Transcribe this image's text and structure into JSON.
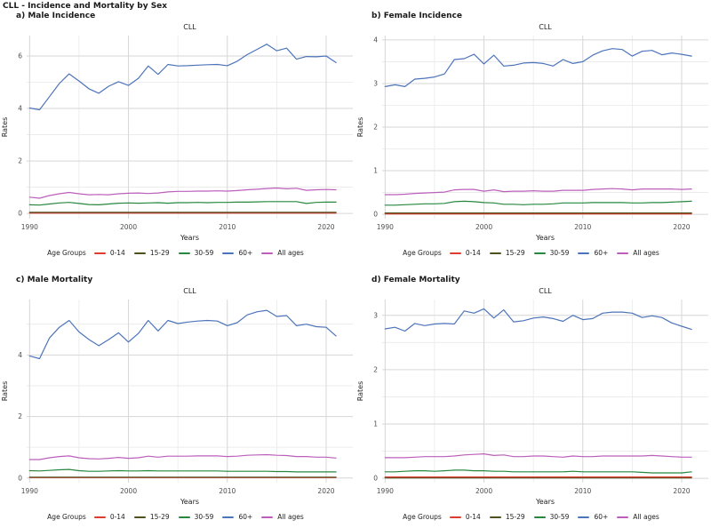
{
  "main_title": "CLL - Incidence and Mortality by Sex",
  "theme": {
    "background": "#ffffff",
    "grid_major": "#d6d6d6",
    "grid_minor": "#e9e9e9",
    "tick_color": "#4d4d4d",
    "text_color": "#1a1a1a"
  },
  "legend": {
    "title": "Age Groups",
    "items": [
      {
        "label": "0-14",
        "color": "#de3b31"
      },
      {
        "label": "15-29",
        "color": "#4f501e"
      },
      {
        "label": "30-59",
        "color": "#27873f"
      },
      {
        "label": "60+",
        "color": "#4d74ba"
      },
      {
        "label": "All ages",
        "color": "#bc5fbb"
      }
    ]
  },
  "panels": [
    {
      "label": "a) Male Incidence",
      "chart": 0
    },
    {
      "label": "b) Female Incidence",
      "chart": 1
    },
    {
      "label": "c) Male Mortality",
      "chart": 2
    },
    {
      "label": "d) Female Mortality",
      "chart": 3
    }
  ],
  "chart_data": [
    {
      "type": "line",
      "title": "CLL",
      "xlabel": "Years",
      "ylabel": "Rates",
      "x": [
        1990,
        1991,
        1992,
        1993,
        1994,
        1995,
        1996,
        1997,
        1998,
        1999,
        2000,
        2001,
        2002,
        2003,
        2004,
        2005,
        2006,
        2007,
        2008,
        2009,
        2010,
        2011,
        2012,
        2013,
        2014,
        2015,
        2016,
        2017,
        2018,
        2019,
        2020,
        2021
      ],
      "xlim": [
        1989.7,
        2022.7
      ],
      "ylim": [
        -0.2,
        6.78
      ],
      "xticks": [
        1990,
        2000,
        2010,
        2020
      ],
      "x_minor": [
        1995,
        2005,
        2015
      ],
      "yticks": [
        0,
        2,
        4,
        6
      ],
      "y_minor": [
        1,
        3,
        5
      ],
      "series": [
        {
          "name": "0-14",
          "values": [
            0.01,
            0.01,
            0.01,
            0.01,
            0.01,
            0.01,
            0.01,
            0.01,
            0.01,
            0.01,
            0.01,
            0.01,
            0.01,
            0.01,
            0.01,
            0.01,
            0.01,
            0.01,
            0.01,
            0.01,
            0.01,
            0.01,
            0.01,
            0.01,
            0.01,
            0.01,
            0.01,
            0.01,
            0.01,
            0.01,
            0.01,
            0.01
          ]
        },
        {
          "name": "15-29",
          "values": [
            0.04,
            0.04,
            0.04,
            0.04,
            0.04,
            0.04,
            0.04,
            0.04,
            0.04,
            0.04,
            0.04,
            0.04,
            0.04,
            0.04,
            0.04,
            0.04,
            0.04,
            0.04,
            0.04,
            0.04,
            0.04,
            0.04,
            0.04,
            0.04,
            0.04,
            0.04,
            0.04,
            0.04,
            0.04,
            0.04,
            0.04,
            0.04
          ]
        },
        {
          "name": "30-59",
          "values": [
            0.33,
            0.32,
            0.36,
            0.4,
            0.42,
            0.38,
            0.34,
            0.33,
            0.36,
            0.39,
            0.4,
            0.39,
            0.4,
            0.41,
            0.39,
            0.41,
            0.41,
            0.42,
            0.41,
            0.42,
            0.42,
            0.43,
            0.43,
            0.44,
            0.45,
            0.45,
            0.45,
            0.45,
            0.38,
            0.42,
            0.43,
            0.43
          ]
        },
        {
          "name": "60+",
          "values": [
            4.02,
            3.95,
            4.45,
            4.95,
            5.32,
            5.05,
            4.75,
            4.58,
            4.85,
            5.02,
            4.88,
            5.15,
            5.62,
            5.3,
            5.68,
            5.62,
            5.63,
            5.65,
            5.67,
            5.68,
            5.63,
            5.8,
            6.05,
            6.25,
            6.45,
            6.2,
            6.3,
            5.88,
            5.98,
            5.97,
            6.0,
            5.75
          ]
        },
        {
          "name": "All ages",
          "values": [
            0.62,
            0.58,
            0.68,
            0.75,
            0.8,
            0.75,
            0.71,
            0.72,
            0.71,
            0.75,
            0.77,
            0.78,
            0.76,
            0.78,
            0.82,
            0.84,
            0.84,
            0.85,
            0.85,
            0.86,
            0.85,
            0.87,
            0.9,
            0.92,
            0.95,
            0.97,
            0.94,
            0.96,
            0.88,
            0.9,
            0.91,
            0.9
          ]
        }
      ]
    },
    {
      "type": "line",
      "title": "CLL",
      "xlabel": "Years",
      "ylabel": "Rates",
      "x": [
        1990,
        1991,
        1992,
        1993,
        1994,
        1995,
        1996,
        1997,
        1998,
        1999,
        2000,
        2001,
        2002,
        2003,
        2004,
        2005,
        2006,
        2007,
        2008,
        2009,
        2010,
        2011,
        2012,
        2013,
        2014,
        2015,
        2016,
        2017,
        2018,
        2019,
        2020,
        2021
      ],
      "xlim": [
        1989.7,
        2022.7
      ],
      "ylim": [
        -0.1,
        4.1
      ],
      "xticks": [
        1990,
        2000,
        2010,
        2020
      ],
      "x_minor": [
        1995,
        2005,
        2015
      ],
      "yticks": [
        0,
        1,
        2,
        3,
        4
      ],
      "y_minor": [
        0.5,
        1.5,
        2.5,
        3.5
      ],
      "series": [
        {
          "name": "0-14",
          "values": [
            0.01,
            0.01,
            0.01,
            0.01,
            0.01,
            0.01,
            0.01,
            0.01,
            0.01,
            0.01,
            0.01,
            0.01,
            0.01,
            0.01,
            0.01,
            0.01,
            0.01,
            0.01,
            0.01,
            0.01,
            0.01,
            0.01,
            0.01,
            0.01,
            0.01,
            0.01,
            0.01,
            0.01,
            0.01,
            0.01,
            0.01,
            0.01
          ]
        },
        {
          "name": "15-29",
          "values": [
            0.03,
            0.03,
            0.03,
            0.03,
            0.03,
            0.03,
            0.03,
            0.03,
            0.03,
            0.03,
            0.03,
            0.03,
            0.03,
            0.03,
            0.03,
            0.03,
            0.03,
            0.03,
            0.03,
            0.03,
            0.03,
            0.03,
            0.03,
            0.03,
            0.03,
            0.03,
            0.03,
            0.03,
            0.03,
            0.03,
            0.03,
            0.03
          ]
        },
        {
          "name": "30-59",
          "values": [
            0.21,
            0.21,
            0.22,
            0.23,
            0.24,
            0.24,
            0.25,
            0.29,
            0.3,
            0.29,
            0.27,
            0.26,
            0.23,
            0.23,
            0.22,
            0.23,
            0.23,
            0.24,
            0.26,
            0.26,
            0.26,
            0.27,
            0.27,
            0.27,
            0.27,
            0.26,
            0.26,
            0.27,
            0.27,
            0.28,
            0.29,
            0.3
          ]
        },
        {
          "name": "60+",
          "values": [
            2.93,
            2.97,
            2.93,
            3.1,
            3.12,
            3.15,
            3.22,
            3.55,
            3.57,
            3.67,
            3.45,
            3.65,
            3.4,
            3.42,
            3.47,
            3.48,
            3.46,
            3.4,
            3.55,
            3.46,
            3.5,
            3.65,
            3.75,
            3.8,
            3.78,
            3.63,
            3.74,
            3.76,
            3.66,
            3.7,
            3.67,
            3.63
          ]
        },
        {
          "name": "All ages",
          "values": [
            0.45,
            0.45,
            0.46,
            0.48,
            0.49,
            0.5,
            0.51,
            0.56,
            0.57,
            0.57,
            0.53,
            0.56,
            0.52,
            0.53,
            0.53,
            0.54,
            0.53,
            0.53,
            0.55,
            0.55,
            0.55,
            0.57,
            0.58,
            0.59,
            0.58,
            0.56,
            0.58,
            0.58,
            0.58,
            0.58,
            0.57,
            0.58
          ]
        }
      ]
    },
    {
      "type": "line",
      "title": "CLL",
      "xlabel": "Years",
      "ylabel": "Rates",
      "x": [
        1990,
        1991,
        1992,
        1993,
        1994,
        1995,
        1996,
        1997,
        1998,
        1999,
        2000,
        2001,
        2002,
        2003,
        2004,
        2005,
        2006,
        2007,
        2008,
        2009,
        2010,
        2011,
        2012,
        2013,
        2014,
        2015,
        2016,
        2017,
        2018,
        2019,
        2020,
        2021
      ],
      "xlim": [
        1989.7,
        2022.7
      ],
      "ylim": [
        -0.15,
        5.8
      ],
      "xticks": [
        1990,
        2000,
        2010,
        2020
      ],
      "x_minor": [
        1995,
        2005,
        2015
      ],
      "yticks": [
        0,
        2,
        4
      ],
      "y_minor": [
        1,
        3,
        5
      ],
      "series": [
        {
          "name": "0-14",
          "values": [
            0.015,
            0.015,
            0.015,
            0.015,
            0.015,
            0.015,
            0.015,
            0.015,
            0.015,
            0.015,
            0.015,
            0.015,
            0.015,
            0.015,
            0.015,
            0.015,
            0.015,
            0.015,
            0.015,
            0.015,
            0.015,
            0.015,
            0.015,
            0.015,
            0.015,
            0.015,
            0.015,
            0.015,
            0.015,
            0.015,
            0.015,
            0.015
          ]
        },
        {
          "name": "15-29",
          "values": [
            0.03,
            0.03,
            0.03,
            0.03,
            0.03,
            0.03,
            0.03,
            0.03,
            0.03,
            0.03,
            0.03,
            0.03,
            0.03,
            0.03,
            0.03,
            0.03,
            0.03,
            0.03,
            0.03,
            0.03,
            0.03,
            0.03,
            0.03,
            0.03,
            0.03,
            0.03,
            0.03,
            0.03,
            0.03,
            0.03,
            0.03,
            0.03
          ]
        },
        {
          "name": "30-59",
          "values": [
            0.24,
            0.23,
            0.25,
            0.27,
            0.28,
            0.24,
            0.22,
            0.22,
            0.23,
            0.24,
            0.23,
            0.23,
            0.24,
            0.23,
            0.23,
            0.23,
            0.23,
            0.23,
            0.23,
            0.23,
            0.22,
            0.22,
            0.22,
            0.22,
            0.22,
            0.21,
            0.21,
            0.2,
            0.2,
            0.2,
            0.2,
            0.2
          ]
        },
        {
          "name": "60+",
          "values": [
            3.97,
            3.88,
            4.55,
            4.9,
            5.12,
            4.75,
            4.5,
            4.3,
            4.5,
            4.72,
            4.42,
            4.7,
            5.12,
            4.78,
            5.12,
            5.02,
            5.07,
            5.1,
            5.12,
            5.1,
            4.95,
            5.05,
            5.3,
            5.4,
            5.45,
            5.25,
            5.28,
            4.95,
            5.0,
            4.92,
            4.9,
            4.62
          ]
        },
        {
          "name": "All ages",
          "values": [
            0.6,
            0.6,
            0.66,
            0.7,
            0.72,
            0.66,
            0.63,
            0.62,
            0.64,
            0.67,
            0.64,
            0.66,
            0.71,
            0.68,
            0.71,
            0.71,
            0.71,
            0.72,
            0.72,
            0.72,
            0.7,
            0.71,
            0.74,
            0.75,
            0.76,
            0.74,
            0.73,
            0.7,
            0.7,
            0.68,
            0.68,
            0.65
          ]
        }
      ]
    },
    {
      "type": "line",
      "title": "CLL",
      "xlabel": "Years",
      "ylabel": "Rates",
      "x": [
        1990,
        1991,
        1992,
        1993,
        1994,
        1995,
        1996,
        1997,
        1998,
        1999,
        2000,
        2001,
        2002,
        2003,
        2004,
        2005,
        2006,
        2007,
        2008,
        2009,
        2010,
        2011,
        2012,
        2013,
        2014,
        2015,
        2016,
        2017,
        2018,
        2019,
        2020,
        2021
      ],
      "xlim": [
        1989.7,
        2022.7
      ],
      "ylim": [
        -0.08,
        3.29
      ],
      "xticks": [
        1990,
        2000,
        2010,
        2020
      ],
      "x_minor": [
        1995,
        2005,
        2015
      ],
      "yticks": [
        0,
        1,
        2,
        3
      ],
      "y_minor": [
        0.5,
        1.5,
        2.5
      ],
      "series": [
        {
          "name": "15-29",
          "values": [
            0.008,
            0.008,
            0.008,
            0.008,
            0.008,
            0.008,
            0.008,
            0.008,
            0.008,
            0.008,
            0.008,
            0.008,
            0.008,
            0.008,
            0.008,
            0.008,
            0.008,
            0.008,
            0.008,
            0.008,
            0.008,
            0.008,
            0.008,
            0.008,
            0.008,
            0.008,
            0.008,
            0.008,
            0.008,
            0.008,
            0.008,
            0.008
          ]
        },
        {
          "name": "0-14",
          "values": [
            0.025,
            0.025,
            0.025,
            0.025,
            0.025,
            0.025,
            0.025,
            0.025,
            0.025,
            0.025,
            0.025,
            0.025,
            0.025,
            0.025,
            0.025,
            0.025,
            0.025,
            0.025,
            0.025,
            0.025,
            0.025,
            0.025,
            0.025,
            0.025,
            0.025,
            0.025,
            0.025,
            0.025,
            0.025,
            0.025,
            0.025,
            0.025
          ]
        },
        {
          "name": "30-59",
          "values": [
            0.12,
            0.12,
            0.13,
            0.14,
            0.14,
            0.13,
            0.14,
            0.15,
            0.15,
            0.14,
            0.14,
            0.13,
            0.13,
            0.12,
            0.12,
            0.12,
            0.12,
            0.12,
            0.12,
            0.13,
            0.12,
            0.12,
            0.12,
            0.12,
            0.12,
            0.12,
            0.11,
            0.1,
            0.1,
            0.1,
            0.1,
            0.12
          ]
        },
        {
          "name": "60+",
          "values": [
            2.75,
            2.78,
            2.71,
            2.85,
            2.81,
            2.84,
            2.85,
            2.84,
            3.08,
            3.04,
            3.12,
            2.95,
            3.1,
            2.88,
            2.9,
            2.95,
            2.97,
            2.94,
            2.89,
            3.0,
            2.92,
            2.94,
            3.04,
            3.06,
            3.06,
            3.04,
            2.96,
            2.99,
            2.96,
            2.86,
            2.8,
            2.74
          ]
        },
        {
          "name": "All ages",
          "values": [
            0.38,
            0.38,
            0.38,
            0.39,
            0.4,
            0.4,
            0.4,
            0.41,
            0.43,
            0.44,
            0.45,
            0.42,
            0.43,
            0.4,
            0.4,
            0.41,
            0.41,
            0.4,
            0.39,
            0.41,
            0.4,
            0.4,
            0.41,
            0.41,
            0.41,
            0.41,
            0.41,
            0.42,
            0.41,
            0.4,
            0.39,
            0.39
          ]
        }
      ]
    }
  ]
}
